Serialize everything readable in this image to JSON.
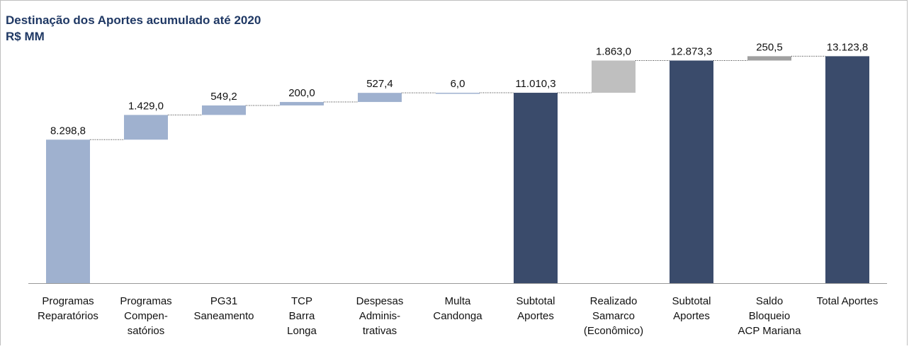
{
  "chart_data": {
    "type": "waterfall",
    "title": "Destinação dos Aportes acumulado até 2020",
    "subtitle": "R$ MM",
    "categories": [
      "Programas\nReparatórios",
      "Programas\nCompen-\nsatórios",
      "PG31\nSaneamento",
      "TCP\nBarra\nLonga",
      "Despesas\nAdminis-\ntrativas",
      "Multa\nCandonga",
      "Subtotal\nAportes",
      "Realizado\nSamarco\n(Econômico)",
      "Subtotal\nAportes",
      "Saldo\nBloqueio\nACP Mariana",
      "Total Aportes"
    ],
    "values": [
      8298.8,
      1429.0,
      549.2,
      200.0,
      527.4,
      6.0,
      11010.3,
      1863.0,
      12873.3,
      250.5,
      13123.8
    ],
    "value_labels": [
      "8.298,8",
      "1.429,0",
      "549,2",
      "200,0",
      "527,4",
      "6,0",
      "11.010,3",
      "1.863,0",
      "12.873,3",
      "250,5",
      "13.123,8"
    ],
    "measure": [
      "relative",
      "relative",
      "relative",
      "relative",
      "relative",
      "relative",
      "total",
      "relative",
      "total",
      "relative",
      "total"
    ],
    "colors": [
      "#9fb1cf",
      "#9fb1cf",
      "#9fb1cf",
      "#9fb1cf",
      "#9fb1cf",
      "#9fb1cf",
      "#3a4b6b",
      "#bfbfbf",
      "#3a4b6b",
      "#a0a0a0",
      "#3a4b6b"
    ],
    "ylim": [
      0,
      14000
    ]
  }
}
